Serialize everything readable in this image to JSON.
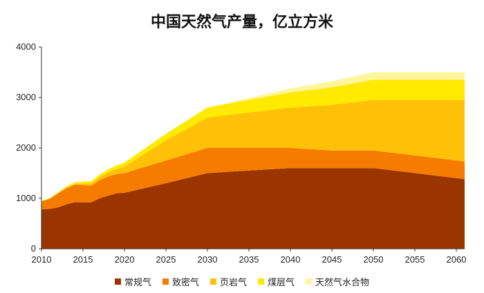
{
  "chart_data": {
    "type": "area",
    "stacked": true,
    "title": "中国天然气产量，亿立方米",
    "xlabel": "",
    "ylabel": "",
    "xlim": [
      2010,
      2061
    ],
    "ylim": [
      0,
      4000
    ],
    "xticks": [
      2010,
      2015,
      2020,
      2025,
      2030,
      2035,
      2040,
      2045,
      2050,
      2055,
      2060
    ],
    "yticks": [
      0,
      1000,
      2000,
      3000,
      4000
    ],
    "grid": false,
    "legend_position": "bottom",
    "x": [
      2010,
      2011,
      2012,
      2013,
      2014,
      2015,
      2016,
      2017,
      2018,
      2019,
      2020,
      2025,
      2030,
      2035,
      2040,
      2045,
      2050,
      2055,
      2061
    ],
    "series": [
      {
        "name": "常规气",
        "color": "#9b3500",
        "values": [
          780,
          790,
          820,
          880,
          920,
          920,
          920,
          1000,
          1050,
          1100,
          1110,
          1300,
          1500,
          1550,
          1600,
          1600,
          1600,
          1500,
          1380
        ]
      },
      {
        "name": "致密气",
        "color": "#f57c00",
        "values": [
          160,
          200,
          280,
          320,
          350,
          340,
          330,
          360,
          380,
          380,
          390,
          450,
          500,
          450,
          400,
          350,
          350,
          350,
          350
        ]
      },
      {
        "name": "页岩气",
        "color": "#ffc107",
        "values": [
          0,
          0,
          0,
          10,
          15,
          30,
          45,
          60,
          80,
          100,
          130,
          400,
          600,
          700,
          800,
          900,
          1000,
          1100,
          1220
        ]
      },
      {
        "name": "煤层气",
        "color": "#ffea00",
        "values": [
          10,
          15,
          20,
          25,
          30,
          40,
          45,
          50,
          60,
          70,
          80,
          130,
          200,
          250,
          300,
          350,
          400,
          400,
          400
        ]
      },
      {
        "name": "天然气水合物",
        "color": "#fff59d",
        "values": [
          0,
          0,
          0,
          0,
          0,
          0,
          0,
          0,
          0,
          0,
          0,
          0,
          0,
          40,
          80,
          120,
          150,
          150,
          150
        ]
      }
    ]
  }
}
